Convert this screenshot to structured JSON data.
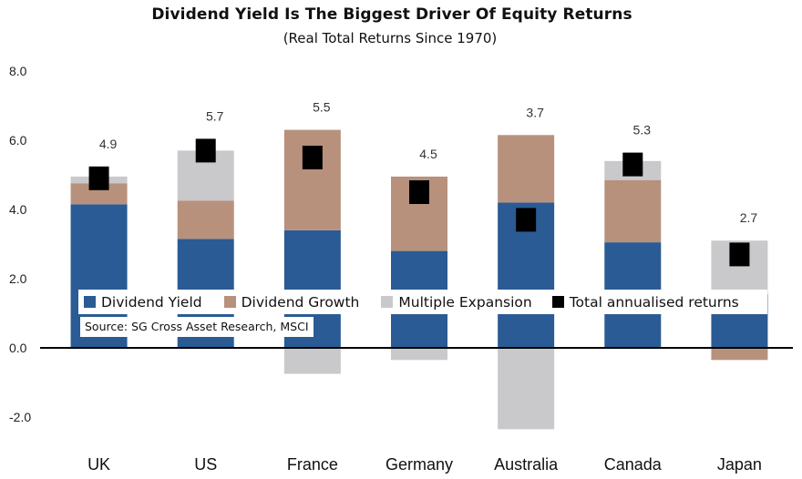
{
  "chart_data": {
    "type": "bar",
    "title": "Dividend Yield Is The Biggest Driver Of Equity Returns",
    "subtitle": "(Real Total Returns Since 1970)",
    "categories": [
      "UK",
      "US",
      "France",
      "Germany",
      "Australia",
      "Canada",
      "Japan"
    ],
    "series": [
      {
        "name": "Dividend Yield",
        "color": "#2a5b94",
        "values": [
          4.15,
          3.15,
          3.4,
          2.8,
          4.2,
          3.05,
          1.55
        ]
      },
      {
        "name": "Dividend Growth",
        "color": "#b8917c",
        "values": [
          0.6,
          1.1,
          2.9,
          2.15,
          1.95,
          1.8,
          -0.35
        ]
      },
      {
        "name": "Multiple Expansion",
        "color": "#c9c8cb",
        "values": [
          0.2,
          1.45,
          -0.75,
          -0.35,
          -2.35,
          0.55,
          1.55
        ]
      }
    ],
    "markers": {
      "name": "Total annualised returns",
      "color": "#000000",
      "values": [
        4.9,
        5.7,
        5.5,
        4.5,
        3.7,
        5.3,
        2.7
      ]
    },
    "value_labels": [
      "4.9",
      "5.7",
      "5.5",
      "4.5",
      "3.7",
      "5.3",
      "2.7"
    ],
    "ylim": [
      -2.8,
      8.0
    ],
    "yticks": [
      "8.0",
      "6.0",
      "4.0",
      "2.0",
      "0.0",
      "-2.0"
    ],
    "legend_position": "overlaid inside plot, lower-middle",
    "source": "Source: SG Cross Asset Research, MSCI",
    "grid": false
  }
}
